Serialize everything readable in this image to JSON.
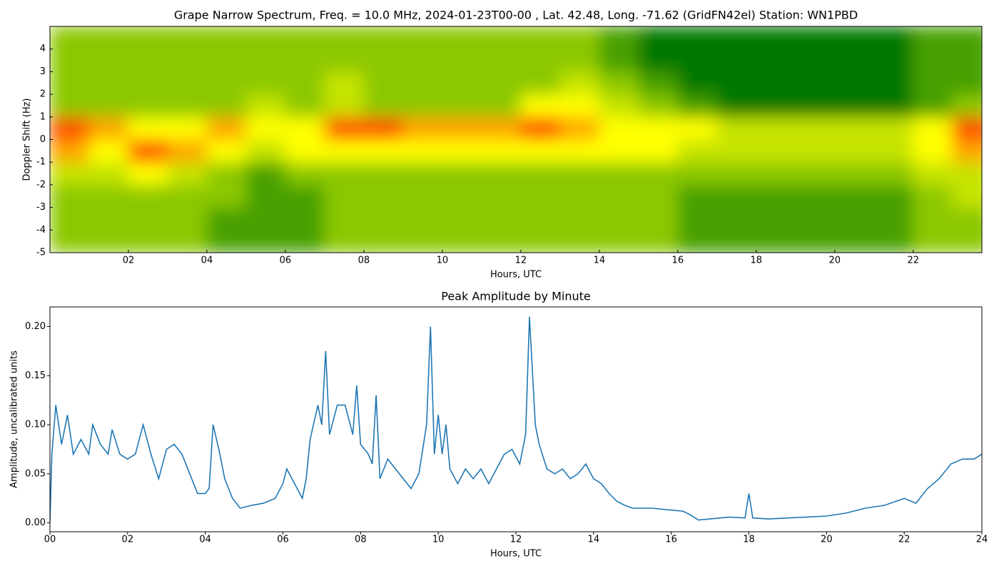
{
  "chart_data": [
    {
      "type": "heatmap",
      "title": "Grape Narrow Spectrum, Freq. = 10.0 MHz, 2024-01-23T00-00 , Lat.  42.48, Long. -71.62 (GridFN42el) Station: WN1PBD",
      "xlabel": "Hours, UTC",
      "ylabel": "Doppler Shift (Hz)",
      "x_bins": [
        0,
        1,
        2,
        3,
        4,
        5,
        6,
        7,
        8,
        9,
        10,
        11,
        12,
        13,
        14,
        15,
        16,
        17,
        18,
        19,
        20,
        21,
        22,
        23,
        24
      ],
      "y_bins": [
        -5,
        -4,
        -3,
        -2,
        -1,
        0,
        1,
        2,
        3,
        4,
        5
      ],
      "z": [
        [
          1,
          1,
          1,
          1,
          0.5,
          0.5,
          0.5,
          1,
          1,
          1,
          1,
          1,
          1,
          1,
          1,
          1,
          0.5,
          0.5,
          0.5,
          0.5,
          0.5,
          0.5,
          1,
          1
        ],
        [
          1,
          1,
          1,
          1,
          0.5,
          0.5,
          0.5,
          1,
          1,
          1,
          1,
          1,
          1,
          1,
          1,
          1,
          0.5,
          0.5,
          0.5,
          0.5,
          0.5,
          0.5,
          1,
          1
        ],
        [
          1,
          1,
          1,
          1,
          1,
          0.5,
          0.5,
          1,
          1,
          1,
          1,
          1,
          1,
          1,
          1,
          1,
          0.5,
          0.5,
          0.5,
          0.5,
          0.5,
          0.5,
          1,
          1.5
        ],
        [
          1.5,
          1.5,
          2,
          1.5,
          1,
          0.5,
          1,
          1,
          1,
          1,
          1,
          1,
          1,
          1,
          1,
          1,
          1,
          1,
          1,
          1,
          1,
          1,
          1.5,
          1.5
        ],
        [
          2.5,
          2,
          3,
          2.5,
          2,
          1.5,
          2,
          2,
          2,
          2,
          2,
          2,
          2,
          2,
          2,
          2,
          1.5,
          1.5,
          1.5,
          1.5,
          1.5,
          1.5,
          2,
          2.5
        ],
        [
          3,
          2.5,
          2,
          2,
          2.5,
          2,
          2,
          3,
          3,
          2.5,
          2.5,
          2.5,
          3,
          2.5,
          2,
          2,
          2,
          1.5,
          1.5,
          1.5,
          1.5,
          1.5,
          2,
          3
        ],
        [
          1,
          1,
          1,
          1,
          1,
          1.5,
          1,
          1.5,
          1,
          1,
          1,
          1,
          2,
          2,
          1.5,
          1,
          0.5,
          0,
          0,
          0,
          0,
          0,
          0.5,
          1
        ],
        [
          1,
          1,
          1,
          1,
          1,
          1,
          1,
          1.5,
          1,
          1,
          1,
          1,
          1,
          1.5,
          1,
          0.5,
          0,
          0,
          0,
          0,
          0,
          0,
          0.5,
          0.5
        ],
        [
          1,
          1,
          1,
          1,
          1,
          1,
          1,
          1,
          1,
          1,
          1,
          1,
          1,
          1,
          0.5,
          0,
          0,
          0,
          0,
          0,
          0,
          0,
          0.5,
          0.5
        ],
        [
          1,
          1,
          1,
          1,
          1,
          1,
          1,
          1,
          1,
          1,
          1,
          1,
          1,
          1,
          0.5,
          0,
          0,
          0,
          0,
          0,
          0,
          0,
          0.5,
          0.5
        ]
      ],
      "zlim": [
        0,
        3
      ],
      "colorscale": [
        "#007800",
        "#8cc800",
        "#ffff00",
        "#ff4a00"
      ],
      "xlim": [
        0,
        23.75
      ],
      "ylim": [
        -5,
        5
      ],
      "xticks": [
        {
          "value": 2,
          "label": "02"
        },
        {
          "value": 4,
          "label": "04"
        },
        {
          "value": 6,
          "label": "06"
        },
        {
          "value": 8,
          "label": "08"
        },
        {
          "value": 10,
          "label": "10"
        },
        {
          "value": 12,
          "label": "12"
        },
        {
          "value": 14,
          "label": "14"
        },
        {
          "value": 16,
          "label": "16"
        },
        {
          "value": 18,
          "label": "18"
        },
        {
          "value": 20,
          "label": "20"
        },
        {
          "value": 22,
          "label": "22"
        }
      ],
      "yticks": [
        -5,
        -4,
        -3,
        -2,
        -1,
        0,
        1,
        2,
        3,
        4
      ]
    },
    {
      "type": "line",
      "title": "Peak Amplitude by Minute",
      "xlabel": "Hours, UTC",
      "ylabel": "Amplitude, uncalibrated units",
      "series": [
        {
          "name": "Peak Amplitude",
          "color": "#1f77b4",
          "x": [
            0,
            0.05,
            0.15,
            0.3,
            0.45,
            0.6,
            0.8,
            1.0,
            1.1,
            1.3,
            1.5,
            1.6,
            1.8,
            2.0,
            2.2,
            2.4,
            2.6,
            2.8,
            3.0,
            3.2,
            3.4,
            3.6,
            3.8,
            4.0,
            4.1,
            4.2,
            4.35,
            4.5,
            4.7,
            4.9,
            5.2,
            5.5,
            5.8,
            6.0,
            6.1,
            6.3,
            6.5,
            6.6,
            6.7,
            6.9,
            7.0,
            7.1,
            7.2,
            7.4,
            7.6,
            7.8,
            7.9,
            8.0,
            8.2,
            8.3,
            8.4,
            8.5,
            8.7,
            8.9,
            9.1,
            9.3,
            9.5,
            9.6,
            9.7,
            9.8,
            9.9,
            10.0,
            10.1,
            10.2,
            10.3,
            10.5,
            10.7,
            10.9,
            11.1,
            11.3,
            11.5,
            11.7,
            11.9,
            12.1,
            12.25,
            12.35,
            12.5,
            12.6,
            12.8,
            13.0,
            13.2,
            13.4,
            13.6,
            13.8,
            14.0,
            14.2,
            14.4,
            14.6,
            14.8,
            15.0,
            15.5,
            16.0,
            16.3,
            16.5,
            16.7,
            17.0,
            17.5,
            17.9,
            18.0,
            18.1,
            18.5,
            19.0,
            19.5,
            20.0,
            20.5,
            21.0,
            21.5,
            22.0,
            22.3,
            22.6,
            22.9,
            23.2,
            23.5,
            23.8,
            24.0
          ],
          "values": [
            0.0,
            0.07,
            0.12,
            0.08,
            0.11,
            0.07,
            0.085,
            0.07,
            0.1,
            0.08,
            0.07,
            0.095,
            0.07,
            0.065,
            0.07,
            0.1,
            0.07,
            0.045,
            0.075,
            0.08,
            0.07,
            0.05,
            0.03,
            0.03,
            0.035,
            0.1,
            0.075,
            0.045,
            0.025,
            0.015,
            0.018,
            0.02,
            0.025,
            0.04,
            0.055,
            0.04,
            0.025,
            0.045,
            0.085,
            0.12,
            0.1,
            0.175,
            0.09,
            0.12,
            0.12,
            0.09,
            0.14,
            0.08,
            0.07,
            0.06,
            0.13,
            0.045,
            0.065,
            0.055,
            0.045,
            0.035,
            0.05,
            0.075,
            0.1,
            0.2,
            0.07,
            0.11,
            0.07,
            0.1,
            0.055,
            0.04,
            0.055,
            0.045,
            0.055,
            0.04,
            0.055,
            0.07,
            0.075,
            0.06,
            0.09,
            0.21,
            0.1,
            0.08,
            0.055,
            0.05,
            0.055,
            0.045,
            0.05,
            0.06,
            0.045,
            0.04,
            0.03,
            0.022,
            0.018,
            0.015,
            0.015,
            0.013,
            0.012,
            0.008,
            0.003,
            0.004,
            0.006,
            0.005,
            0.03,
            0.005,
            0.004,
            0.005,
            0.006,
            0.007,
            0.01,
            0.015,
            0.018,
            0.025,
            0.02,
            0.035,
            0.045,
            0.06,
            0.065,
            0.065,
            0.07
          ]
        }
      ],
      "xlim": [
        0,
        24
      ],
      "ylim": [
        -0.009,
        0.22
      ],
      "xticks": [
        {
          "value": 0,
          "label": "00"
        },
        {
          "value": 2,
          "label": "02"
        },
        {
          "value": 4,
          "label": "04"
        },
        {
          "value": 6,
          "label": "06"
        },
        {
          "value": 8,
          "label": "08"
        },
        {
          "value": 10,
          "label": "10"
        },
        {
          "value": 12,
          "label": "12"
        },
        {
          "value": 14,
          "label": "14"
        },
        {
          "value": 16,
          "label": "16"
        },
        {
          "value": 18,
          "label": "18"
        },
        {
          "value": 20,
          "label": "20"
        },
        {
          "value": 22,
          "label": "22"
        },
        {
          "value": 24,
          "label": "24"
        }
      ],
      "yticks": [
        {
          "value": 0,
          "label": "0.00"
        },
        {
          "value": 0.05,
          "label": "0.05"
        },
        {
          "value": 0.1,
          "label": "0.10"
        },
        {
          "value": 0.15,
          "label": "0.15"
        },
        {
          "value": 0.2,
          "label": "0.20"
        }
      ]
    }
  ]
}
